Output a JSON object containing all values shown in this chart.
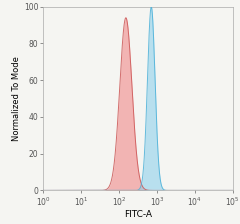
{
  "title": "",
  "xlabel": "FITC-A",
  "ylabel": "Normalized To Mode",
  "xlim_log": [
    0,
    5
  ],
  "ylim": [
    0,
    100
  ],
  "yticks": [
    0,
    20,
    40,
    60,
    80,
    100
  ],
  "xticks_log": [
    0,
    1,
    2,
    3,
    4,
    5
  ],
  "red_peak_log_mean": 2.18,
  "red_peak_log_std": 0.16,
  "red_peak_height": 94,
  "blue_peak_log_mean": 2.85,
  "blue_peak_log_std": 0.1,
  "blue_peak_height": 100,
  "red_fill_color": "#f08080",
  "red_edge_color": "#cc5555",
  "blue_fill_color": "#87ceeb",
  "blue_edge_color": "#4ab0d8",
  "background_color": "#f5f5f2",
  "plot_bg_color": "#f5f5f2",
  "alpha_fill": 0.55,
  "alpha_edge": 0.85,
  "x_start_log": 0.0,
  "x_end_log": 5.0
}
